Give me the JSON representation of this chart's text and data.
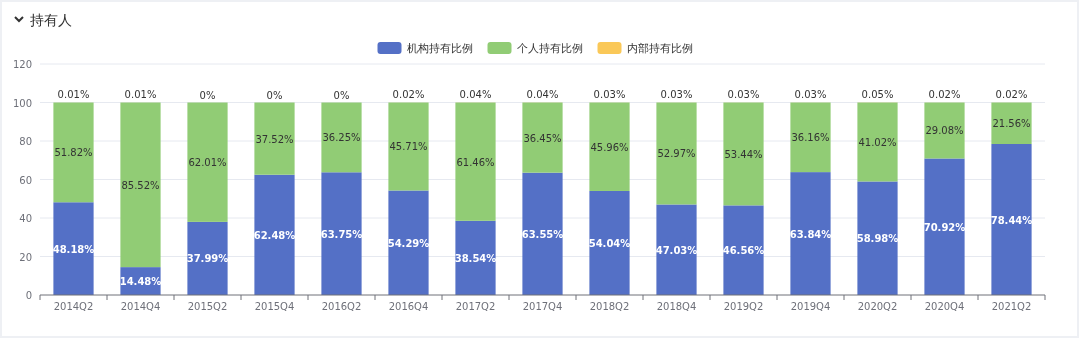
{
  "chart_data": {
    "type": "bar",
    "stacked": true,
    "title": "持有人",
    "categories": [
      "2014Q2",
      "2014Q4",
      "2015Q2",
      "2015Q4",
      "2016Q2",
      "2016Q4",
      "2017Q2",
      "2017Q4",
      "2018Q2",
      "2018Q4",
      "2019Q2",
      "2019Q4",
      "2020Q2",
      "2020Q4",
      "2021Q2"
    ],
    "series": [
      {
        "name": "机构持有比例",
        "color": "#5470c6",
        "values": [
          48.18,
          14.48,
          37.99,
          62.48,
          63.75,
          54.29,
          38.54,
          63.55,
          54.04,
          47.03,
          46.56,
          63.84,
          58.98,
          70.92,
          78.44
        ],
        "value_labels": [
          "48.18%",
          "14.48%",
          "37.99%",
          "62.48%",
          "63.75%",
          "54.29%",
          "38.54%",
          "63.55%",
          "54.04%",
          "47.03%",
          "46.56%",
          "63.84%",
          "58.98%",
          "70.92%",
          "78.44%"
        ]
      },
      {
        "name": "个人持有比例",
        "color": "#91cc75",
        "values": [
          51.82,
          85.52,
          62.01,
          37.52,
          36.25,
          45.71,
          61.46,
          36.45,
          45.96,
          52.97,
          53.44,
          36.16,
          41.02,
          29.08,
          21.56
        ],
        "value_labels": [
          "51.82%",
          "85.52%",
          "62.01%",
          "37.52%",
          "36.25%",
          "45.71%",
          "61.46%",
          "36.45%",
          "45.96%",
          "52.97%",
          "53.44%",
          "36.16%",
          "41.02%",
          "29.08%",
          "21.56%"
        ]
      },
      {
        "name": "内部持有比例",
        "color": "#fac858",
        "values": [
          0.01,
          0.01,
          0,
          0,
          0,
          0.02,
          0.04,
          0.04,
          0.03,
          0.03,
          0.03,
          0.03,
          0.05,
          0.02,
          0.02
        ],
        "value_labels": [
          "0.01%",
          "0.01%",
          "0%",
          "0%",
          "0%",
          "0.02%",
          "0.04%",
          "0.04%",
          "0.03%",
          "0.03%",
          "0.03%",
          "0.03%",
          "0.05%",
          "0.02%",
          "0.02%"
        ]
      }
    ],
    "ylim": [
      0,
      120
    ],
    "yticks": [
      0,
      20,
      40,
      60,
      80,
      100,
      120
    ],
    "grid": "y",
    "legend": "top"
  }
}
